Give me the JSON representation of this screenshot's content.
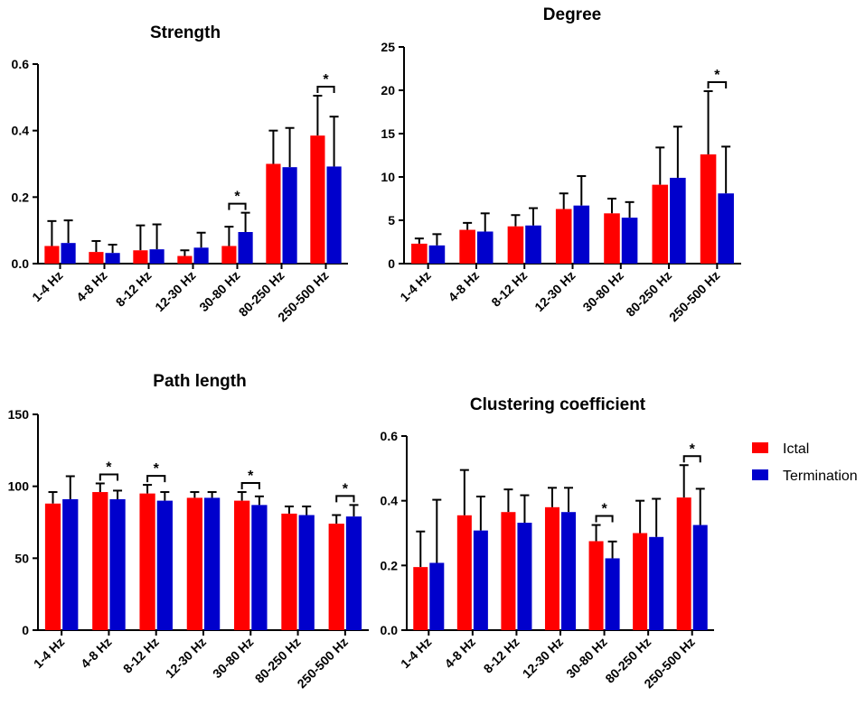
{
  "colors": {
    "ictal": "#ff0000",
    "termination": "#0000cc",
    "axis": "#000000"
  },
  "legend": {
    "ictal_label": "Ictal",
    "termination_label": "Termination"
  },
  "chart_data": [
    {
      "id": "strength",
      "type": "bar",
      "title": "Strength",
      "categories": [
        "1-4 Hz",
        "4-8 Hz",
        "8-12 Hz",
        "12-30 Hz",
        "30-80 Hz",
        "80-250 Hz",
        "250-500 Hz"
      ],
      "ylim": [
        0,
        0.6
      ],
      "yticks": [
        "0.0",
        "0.2",
        "0.4",
        "0.6"
      ],
      "series": [
        {
          "name": "Ictal",
          "values": [
            0.053,
            0.035,
            0.04,
            0.023,
            0.053,
            0.3,
            0.385
          ],
          "errors": [
            0.075,
            0.033,
            0.075,
            0.017,
            0.058,
            0.1,
            0.12
          ]
        },
        {
          "name": "Termination",
          "values": [
            0.062,
            0.032,
            0.043,
            0.048,
            0.095,
            0.29,
            0.292
          ],
          "errors": [
            0.068,
            0.025,
            0.075,
            0.045,
            0.058,
            0.118,
            0.15
          ]
        }
      ],
      "significant": [
        4,
        6
      ],
      "sig_label": "*"
    },
    {
      "id": "degree",
      "type": "bar",
      "title": "Degree",
      "categories": [
        "1-4 Hz",
        "4-8 Hz",
        "8-12 Hz",
        "12-30 Hz",
        "30-80 Hz",
        "80-250 Hz",
        "250-500 Hz"
      ],
      "ylim": [
        0,
        25
      ],
      "yticks": [
        "0",
        "5",
        "10",
        "15",
        "20",
        "25"
      ],
      "series": [
        {
          "name": "Ictal",
          "values": [
            2.3,
            3.9,
            4.3,
            6.3,
            5.8,
            9.1,
            12.6
          ],
          "errors": [
            0.6,
            0.8,
            1.3,
            1.8,
            1.7,
            4.3,
            7.3
          ]
        },
        {
          "name": "Termination",
          "values": [
            2.1,
            3.7,
            4.4,
            6.7,
            5.3,
            9.9,
            8.1
          ],
          "errors": [
            1.3,
            2.1,
            2.0,
            3.4,
            1.8,
            5.9,
            5.4
          ]
        }
      ],
      "significant": [
        6
      ],
      "sig_label": "*"
    },
    {
      "id": "path-length",
      "type": "bar",
      "title": "Path length",
      "categories": [
        "1-4 Hz",
        "4-8 Hz",
        "8-12 Hz",
        "12-30 Hz",
        "30-80 Hz",
        "80-250 Hz",
        "250-500 Hz"
      ],
      "ylim": [
        0,
        150
      ],
      "yticks": [
        "0",
        "50",
        "100",
        "150"
      ],
      "series": [
        {
          "name": "Ictal",
          "values": [
            88,
            96,
            95,
            92,
            90,
            81,
            74
          ],
          "errors": [
            8,
            6,
            6,
            4,
            6,
            5,
            6
          ]
        },
        {
          "name": "Termination",
          "values": [
            91,
            91,
            90,
            92,
            87,
            80,
            79
          ],
          "errors": [
            16,
            6,
            6,
            4,
            6,
            6,
            8
          ]
        }
      ],
      "significant": [
        1,
        2,
        4,
        6
      ],
      "sig_label": "*"
    },
    {
      "id": "clustering-coefficient",
      "type": "bar",
      "title": "Clustering coefficient",
      "categories": [
        "1-4 Hz",
        "4-8 Hz",
        "8-12 Hz",
        "12-30 Hz",
        "30-80 Hz",
        "80-250 Hz",
        "250-500 Hz"
      ],
      "ylim": [
        0,
        0.6
      ],
      "yticks": [
        "0.0",
        "0.2",
        "0.4",
        "0.6"
      ],
      "series": [
        {
          "name": "Ictal",
          "values": [
            0.195,
            0.355,
            0.365,
            0.38,
            0.275,
            0.3,
            0.41
          ],
          "errors": [
            0.11,
            0.14,
            0.07,
            0.06,
            0.05,
            0.1,
            0.1
          ]
        },
        {
          "name": "Termination",
          "values": [
            0.208,
            0.308,
            0.332,
            0.365,
            0.222,
            0.288,
            0.325
          ],
          "errors": [
            0.195,
            0.105,
            0.085,
            0.075,
            0.052,
            0.118,
            0.112
          ]
        }
      ],
      "significant": [
        4,
        6
      ],
      "sig_label": "*"
    }
  ]
}
